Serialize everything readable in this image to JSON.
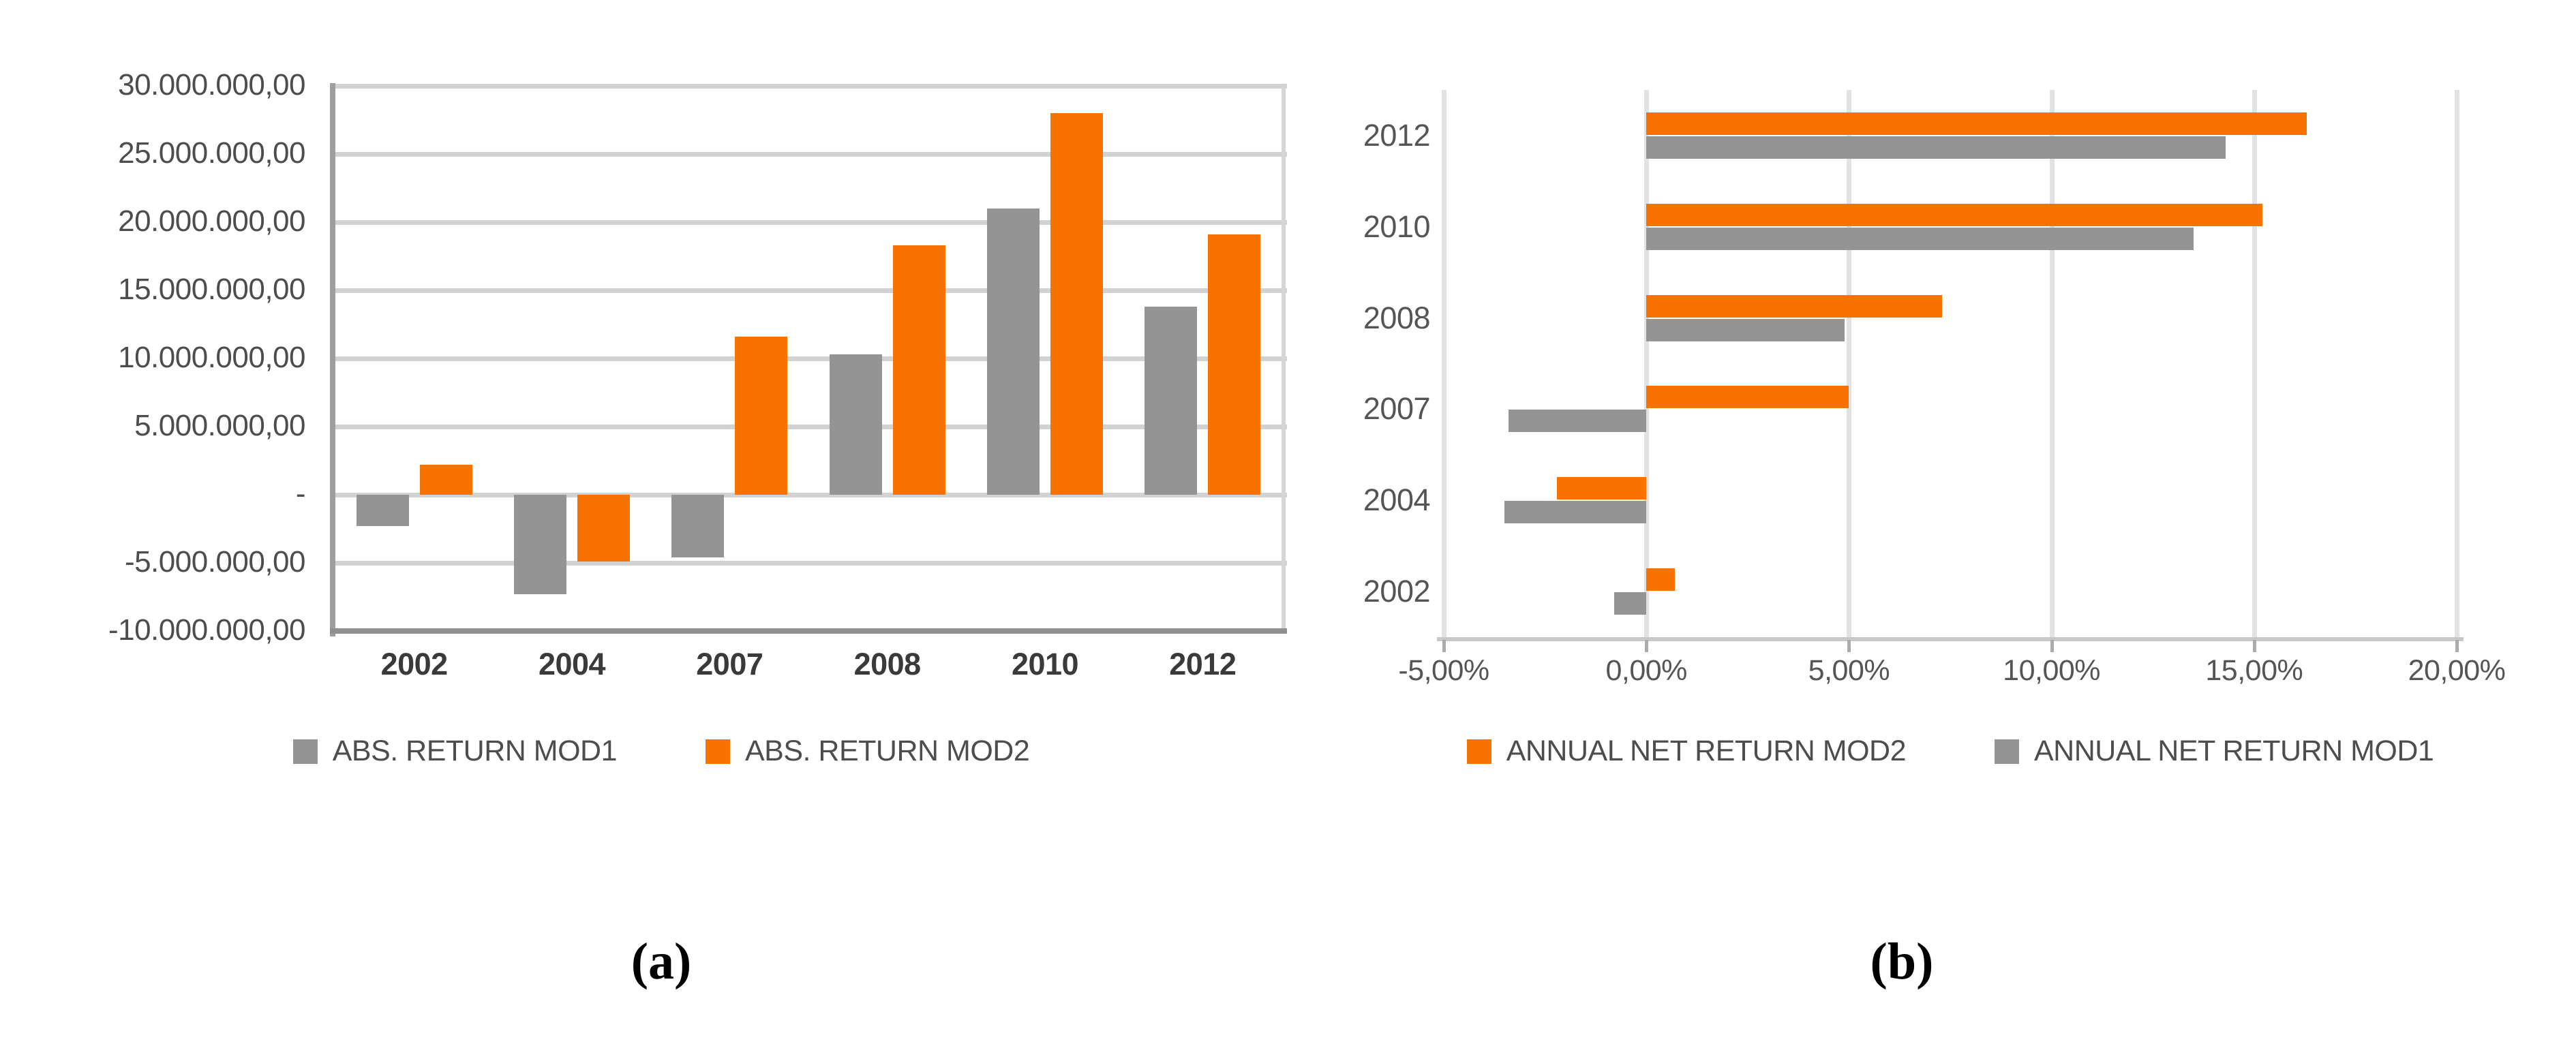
{
  "captions": {
    "a": "(a)",
    "b": "(b)"
  },
  "colors": {
    "orange": "#F87200",
    "gray": "#949494",
    "gridline": "#D2D2D4",
    "axis_dark": "#9E9E9E",
    "axis_light": "#C8C8CA",
    "label_text": "#4D4D4D"
  },
  "chart_data": [
    {
      "id": "a",
      "type": "bar",
      "title": "",
      "categories": [
        "2002",
        "2004",
        "2007",
        "2008",
        "2010",
        "2012"
      ],
      "series": [
        {
          "name": "ABS. RETURN MOD1",
          "color": "#949494",
          "values": [
            -2300000,
            -7300000,
            -4600000,
            10300000,
            21000000,
            13800000
          ]
        },
        {
          "name": "ABS. RETURN MOD2",
          "color": "#F87200",
          "values": [
            2200000,
            -4900000,
            11600000,
            18300000,
            28000000,
            19100000
          ]
        }
      ],
      "ylim": [
        -10000000,
        30000000
      ],
      "ytick_step": 5000000,
      "ytick_labels": [
        "30.000.000,00",
        "25.000.000,00",
        "20.000.000,00",
        "15.000.000,00",
        "10.000.000,00",
        "5.000.000,00",
        "-",
        "-5.000.000,00",
        "-10.000.000,00"
      ],
      "grid": "horizontal",
      "legend_position": "bottom"
    },
    {
      "id": "b",
      "type": "horizontal-bar",
      "title": "",
      "categories": [
        "2012",
        "2010",
        "2008",
        "2007",
        "2004",
        "2002"
      ],
      "series": [
        {
          "name": "ANNUAL NET RETURN MOD2",
          "color": "#F87200",
          "values": [
            16.3,
            15.2,
            7.3,
            5.0,
            -2.2,
            0.7
          ]
        },
        {
          "name": "ANNUAL NET RETURN MOD1",
          "color": "#949494",
          "values": [
            14.3,
            13.5,
            4.9,
            -3.4,
            -3.5,
            -0.8
          ]
        }
      ],
      "xlim": [
        -5,
        20
      ],
      "xtick_step": 5,
      "xtick_labels": [
        "-5,00%",
        "0,00%",
        "5,00%",
        "10,00%",
        "15,00%",
        "20,00%"
      ],
      "value_format": "percent",
      "grid": "vertical",
      "legend_position": "bottom"
    }
  ]
}
